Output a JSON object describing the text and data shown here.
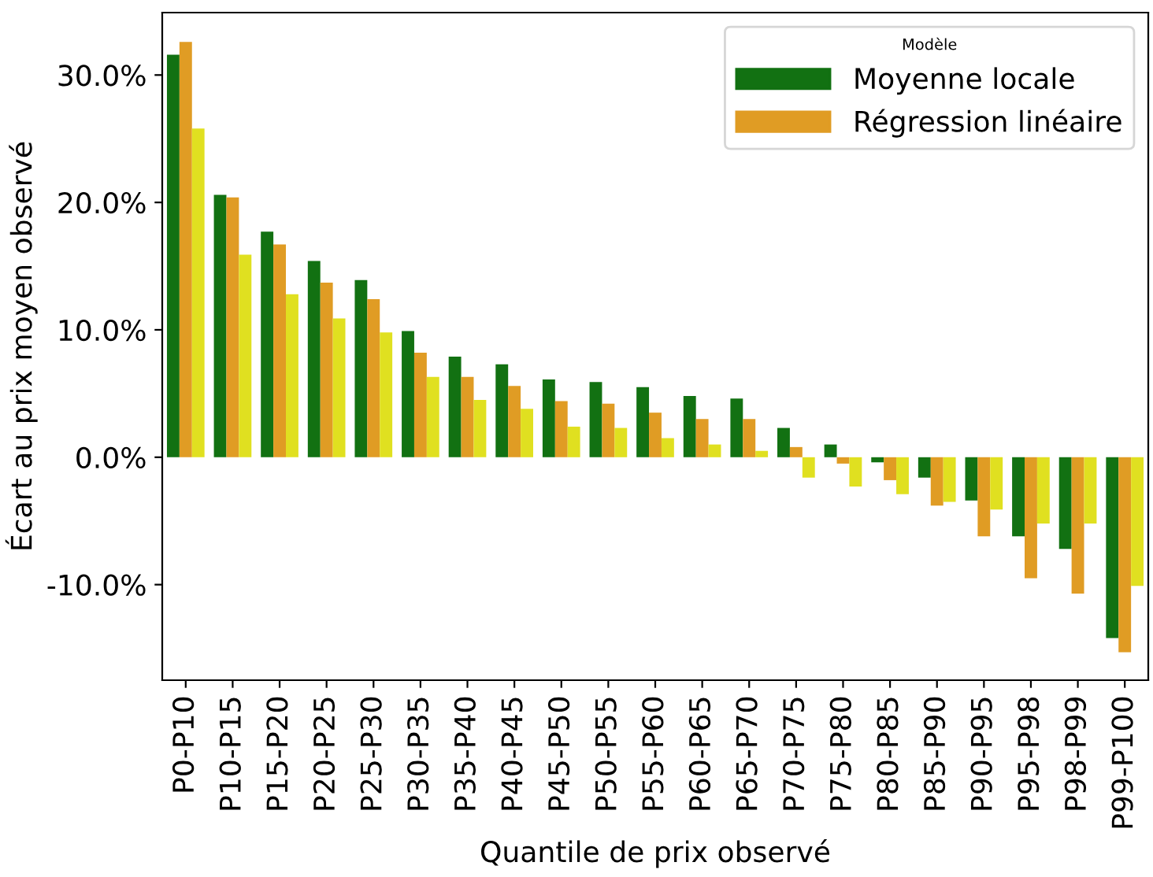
{
  "chart_data": {
    "type": "bar",
    "xlabel": "Quantile de prix observé",
    "ylabel": "Écart au prix moyen observé",
    "legend_title": "Modèle",
    "categories": [
      "P0-P10",
      "P10-P15",
      "P15-P20",
      "P20-P25",
      "P25-P30",
      "P30-P35",
      "P35-P40",
      "P40-P45",
      "P45-P50",
      "P50-P55",
      "P55-P60",
      "P60-P65",
      "P65-P70",
      "P70-P75",
      "P75-P80",
      "P80-P85",
      "P85-P90",
      "P90-P95",
      "P95-P98",
      "P98-P99",
      "P99-P100"
    ],
    "series": [
      {
        "name": "Moyenne locale",
        "color": "#127112",
        "values": [
          31.6,
          20.6,
          17.7,
          15.4,
          13.9,
          9.9,
          7.9,
          7.3,
          6.1,
          5.9,
          5.5,
          4.8,
          4.6,
          2.3,
          1.0,
          -0.4,
          -1.6,
          -3.4,
          -6.2,
          -7.2,
          -14.2
        ]
      },
      {
        "name": "Régression linéaire",
        "color": "#e09c24",
        "values": [
          32.6,
          20.4,
          16.7,
          13.7,
          12.4,
          8.2,
          6.3,
          5.6,
          4.4,
          4.2,
          3.5,
          3.0,
          3.0,
          0.8,
          -0.5,
          -1.8,
          -3.8,
          -6.2,
          -9.5,
          -10.7,
          -15.3
        ]
      },
      {
        "color": "#e0e020",
        "values": [
          25.8,
          15.9,
          12.8,
          10.9,
          9.8,
          6.3,
          4.5,
          3.8,
          2.4,
          2.3,
          1.5,
          1.0,
          0.5,
          -1.6,
          -2.3,
          -2.9,
          -3.5,
          -4.1,
          -5.2,
          -5.2,
          -10.1
        ]
      }
    ],
    "ylim": [
      -17.5,
      34.9
    ],
    "yticks": [
      {
        "value": -10,
        "label": "-10.0%"
      },
      {
        "value": 0,
        "label": "0.0%"
      },
      {
        "value": 10,
        "label": "10.0%"
      },
      {
        "value": 20,
        "label": "20.0%"
      },
      {
        "value": 30,
        "label": "30.0%"
      }
    ],
    "legend": "top right",
    "grid": false
  }
}
